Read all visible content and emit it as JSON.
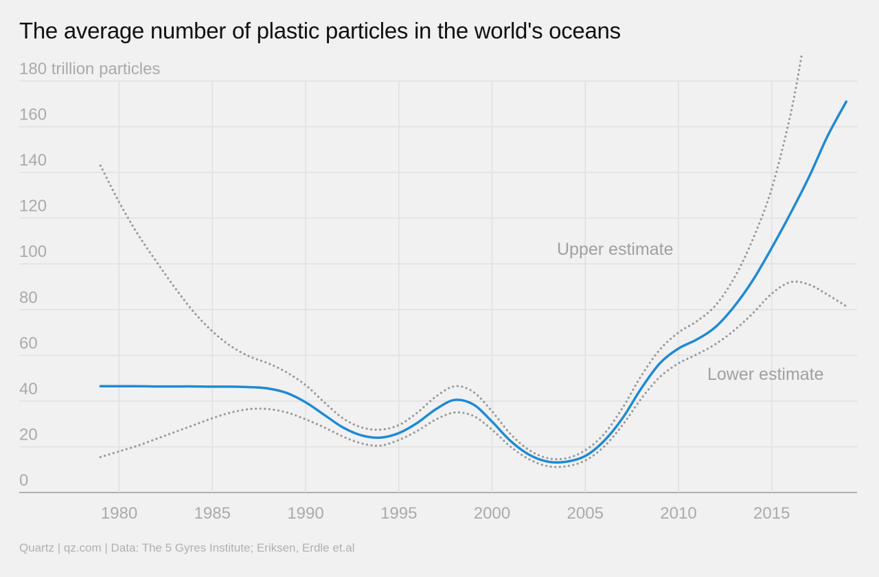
{
  "title": "The average number of plastic particles in the world's oceans",
  "source": "Quartz | qz.com | Data: The 5 Gyres Institute; Eriksen, Erdle et.al",
  "colors": {
    "background": "#f1f1f1",
    "main_line": "#1f8ad2",
    "estimate_lines": "#999999",
    "grid": "#e0e0e0",
    "text": "#111111",
    "muted_text": "#aaaaaa"
  },
  "chart_data": {
    "type": "line",
    "title": "The average number of plastic particles in the world's oceans",
    "ylabel_top": "180 trillion particles",
    "xlabel": "",
    "xlim": [
      1976.5,
      2020.5
    ],
    "ylim": [
      0,
      180
    ],
    "x_ticks": [
      1980,
      1985,
      1990,
      1995,
      2000,
      2005,
      2010,
      2015
    ],
    "y_ticks": [
      0,
      20,
      40,
      60,
      80,
      100,
      120,
      140,
      160,
      180
    ],
    "y_tick_labels": [
      "0",
      "20",
      "40",
      "60",
      "80",
      "100",
      "120",
      "140",
      "160",
      "180 trillion particles"
    ],
    "grid": true,
    "series": [
      {
        "id": "average",
        "style": "solid",
        "x": [
          1979,
          1980,
          1981,
          1982,
          1983,
          1984,
          1985,
          1986,
          1987,
          1988,
          1989,
          1990,
          1991,
          1992,
          1993,
          1994,
          1995,
          1996,
          1997,
          1998,
          1999,
          2000,
          2001,
          2002,
          2003,
          2004,
          2005,
          2006,
          2007,
          2008,
          2009,
          2010,
          2011,
          2012,
          2013,
          2014,
          2015,
          2016,
          2017,
          2018,
          2019
        ],
        "y": [
          46.5,
          46.5,
          46.5,
          46.4,
          46.4,
          46.4,
          46.3,
          46.3,
          46.1,
          45.5,
          43.5,
          39.5,
          34,
          28.5,
          25,
          24,
          26,
          30.5,
          36.5,
          40.5,
          38.5,
          31,
          22.5,
          16.5,
          13.5,
          13.5,
          16,
          22.5,
          32.5,
          45.5,
          56.5,
          63,
          67,
          72.5,
          81.5,
          93,
          107,
          122,
          138,
          156,
          171
        ]
      },
      {
        "id": "upper",
        "style": "dotted",
        "x": [
          1979,
          1980,
          1981,
          1982,
          1983,
          1984,
          1985,
          1986,
          1987,
          1988,
          1989,
          1990,
          1991,
          1992,
          1993,
          1994,
          1995,
          1996,
          1997,
          1998,
          1999,
          2000,
          2001,
          2002,
          2003,
          2004,
          2005,
          2006,
          2007,
          2008,
          2009,
          2010,
          2011,
          2012,
          2013,
          2014,
          2015,
          2016,
          2016.6
        ],
        "y": [
          143,
          127,
          113,
          101,
          89.5,
          79,
          70.5,
          64,
          59.5,
          56.5,
          52.5,
          47,
          39.5,
          32.5,
          28.5,
          27.5,
          29.5,
          35,
          42,
          46.5,
          44,
          35.5,
          25.5,
          18.5,
          15,
          15,
          18.5,
          25.5,
          37,
          51,
          62.5,
          70,
          75,
          82,
          94,
          111,
          133,
          165,
          191
        ]
      },
      {
        "id": "lower",
        "style": "dotted",
        "x": [
          1979,
          1980,
          1981,
          1982,
          1983,
          1984,
          1985,
          1986,
          1987,
          1988,
          1989,
          1990,
          1991,
          1992,
          1993,
          1994,
          1995,
          1996,
          1997,
          1998,
          1999,
          2000,
          2001,
          2002,
          2003,
          2004,
          2005,
          2006,
          2007,
          2008,
          2009,
          2010,
          2011,
          2012,
          2013,
          2014,
          2015,
          2016,
          2017,
          2018,
          2019
        ],
        "y": [
          15.5,
          18,
          20.5,
          23.5,
          26.5,
          29.5,
          32.5,
          35,
          36.5,
          36.5,
          35,
          32,
          28.5,
          24.5,
          21.5,
          20.5,
          23,
          27,
          32,
          35,
          33.5,
          27.5,
          20,
          14.5,
          11.5,
          11.5,
          14,
          20,
          29.5,
          41,
          50.5,
          56.5,
          60.5,
          65,
          71,
          78.5,
          87,
          92,
          91,
          86.5,
          81.5
        ]
      }
    ],
    "annotations": [
      "Upper estimate",
      "Lower estimate"
    ],
    "legend": "none"
  }
}
